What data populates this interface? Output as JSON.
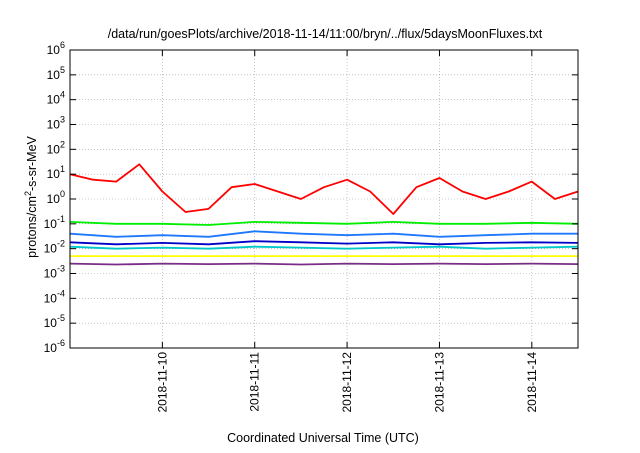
{
  "chart_data": {
    "type": "line",
    "title": "/data/run/goesPlots/archive/2018-11-14/11:00/bryn/../flux/5daysMoonFluxes.txt",
    "xlabel": "Coordinated Universal Time (UTC)",
    "ylabel_parts": {
      "base": "protons/cm",
      "sup": "2",
      "rest": "-s-sr-MeV"
    },
    "x_ticks": [
      "2018-11-10",
      "2018-11-11",
      "2018-11-12",
      "2018-11-13",
      "2018-11-14"
    ],
    "y_ticks": [
      {
        "value": 1e-06,
        "base": "10",
        "exp": "-6"
      },
      {
        "value": 1e-05,
        "base": "10",
        "exp": "-5"
      },
      {
        "value": 0.0001,
        "base": "10",
        "exp": "-4"
      },
      {
        "value": 0.001,
        "base": "10",
        "exp": "-3"
      },
      {
        "value": 0.01,
        "base": "10",
        "exp": "-2"
      },
      {
        "value": 0.1,
        "base": "10",
        "exp": "-1"
      },
      {
        "value": 1,
        "base": "10",
        "exp": "0"
      },
      {
        "value": 10,
        "base": "10",
        "exp": "1"
      },
      {
        "value": 100,
        "base": "10",
        "exp": "2"
      },
      {
        "value": 1000,
        "base": "10",
        "exp": "3"
      },
      {
        "value": 10000,
        "base": "10",
        "exp": "4"
      },
      {
        "value": 100000,
        "base": "10",
        "exp": "5"
      },
      {
        "value": 1000000,
        "base": "10",
        "exp": "6"
      }
    ],
    "x_range": [
      "2018-11-09 00:00",
      "2018-11-14 12:00"
    ],
    "y_range": [
      1e-06,
      1000000.0
    ],
    "y_scale": "log",
    "grid": true,
    "series": [
      {
        "color": "#ff0000",
        "x": [
          "2018-11-09 00:00",
          "2018-11-09 06:00",
          "2018-11-09 12:00",
          "2018-11-09 18:00",
          "2018-11-10 00:00",
          "2018-11-10 06:00",
          "2018-11-10 12:00",
          "2018-11-10 18:00",
          "2018-11-11 00:00",
          "2018-11-11 06:00",
          "2018-11-11 12:00",
          "2018-11-11 18:00",
          "2018-11-12 00:00",
          "2018-11-12 06:00",
          "2018-11-12 12:00",
          "2018-11-12 18:00",
          "2018-11-13 00:00",
          "2018-11-13 06:00",
          "2018-11-13 12:00",
          "2018-11-13 18:00",
          "2018-11-14 00:00",
          "2018-11-14 06:00",
          "2018-11-14 12:00"
        ],
        "values": [
          10,
          6,
          5,
          25,
          2,
          0.3,
          0.4,
          3,
          4,
          2,
          1,
          3,
          6,
          2,
          0.25,
          3,
          7,
          2,
          1,
          2,
          5,
          1,
          2
        ]
      },
      {
        "color": "#00ee00",
        "x": [
          "2018-11-09 00:00",
          "2018-11-09 12:00",
          "2018-11-10 00:00",
          "2018-11-10 12:00",
          "2018-11-11 00:00",
          "2018-11-11 12:00",
          "2018-11-12 00:00",
          "2018-11-12 12:00",
          "2018-11-13 00:00",
          "2018-11-13 12:00",
          "2018-11-14 00:00",
          "2018-11-14 12:00"
        ],
        "values": [
          0.12,
          0.1,
          0.1,
          0.09,
          0.12,
          0.11,
          0.1,
          0.12,
          0.1,
          0.1,
          0.11,
          0.1
        ]
      },
      {
        "color": "#00c8c8",
        "x": [
          "2018-11-09 00:00",
          "2018-11-09 12:00",
          "2018-11-10 00:00",
          "2018-11-10 12:00",
          "2018-11-11 00:00",
          "2018-11-11 12:00",
          "2018-11-12 00:00",
          "2018-11-12 12:00",
          "2018-11-13 00:00",
          "2018-11-13 12:00",
          "2018-11-14 00:00",
          "2018-11-14 12:00"
        ],
        "values": [
          0.012,
          0.01,
          0.011,
          0.01,
          0.012,
          0.011,
          0.01,
          0.011,
          0.012,
          0.01,
          0.011,
          0.012
        ]
      },
      {
        "color": "#1e78ff",
        "x": [
          "2018-11-09 00:00",
          "2018-11-09 12:00",
          "2018-11-10 00:00",
          "2018-11-10 12:00",
          "2018-11-11 00:00",
          "2018-11-11 12:00",
          "2018-11-12 00:00",
          "2018-11-12 12:00",
          "2018-11-13 00:00",
          "2018-11-13 12:00",
          "2018-11-14 00:00",
          "2018-11-14 12:00"
        ],
        "values": [
          0.04,
          0.03,
          0.035,
          0.03,
          0.05,
          0.04,
          0.035,
          0.04,
          0.03,
          0.035,
          0.04,
          0.04
        ]
      },
      {
        "color": "#0000c8",
        "x": [
          "2018-11-09 00:00",
          "2018-11-09 12:00",
          "2018-11-10 00:00",
          "2018-11-10 12:00",
          "2018-11-11 00:00",
          "2018-11-11 12:00",
          "2018-11-12 00:00",
          "2018-11-12 12:00",
          "2018-11-13 00:00",
          "2018-11-13 12:00",
          "2018-11-14 00:00",
          "2018-11-14 12:00"
        ],
        "values": [
          0.018,
          0.015,
          0.017,
          0.015,
          0.02,
          0.018,
          0.016,
          0.018,
          0.015,
          0.017,
          0.018,
          0.017
        ]
      },
      {
        "color": "#ffff00",
        "x": [
          "2018-11-09 00:00",
          "2018-11-09 12:00",
          "2018-11-10 00:00",
          "2018-11-10 12:00",
          "2018-11-11 00:00",
          "2018-11-11 12:00",
          "2018-11-12 00:00",
          "2018-11-12 12:00",
          "2018-11-13 00:00",
          "2018-11-13 12:00",
          "2018-11-14 00:00",
          "2018-11-14 12:00"
        ],
        "values": [
          0.005,
          0.005,
          0.005,
          0.005,
          0.005,
          0.005,
          0.005,
          0.005,
          0.005,
          0.005,
          0.005,
          0.005
        ]
      },
      {
        "color": "#7a2d86",
        "x": [
          "2018-11-09 00:00",
          "2018-11-09 12:00",
          "2018-11-10 00:00",
          "2018-11-10 12:00",
          "2018-11-11 00:00",
          "2018-11-11 12:00",
          "2018-11-12 00:00",
          "2018-11-12 12:00",
          "2018-11-13 00:00",
          "2018-11-13 12:00",
          "2018-11-14 00:00",
          "2018-11-14 12:00"
        ],
        "values": [
          0.0025,
          0.0023,
          0.0025,
          0.0024,
          0.0025,
          0.0023,
          0.0025,
          0.0024,
          0.0025,
          0.0024,
          0.0025,
          0.0024
        ]
      }
    ]
  }
}
